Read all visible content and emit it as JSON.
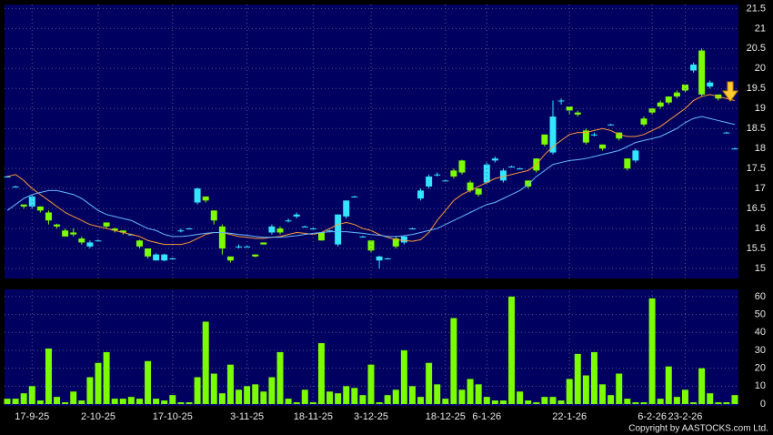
{
  "chart_data": [
    {
      "type": "candlestick",
      "open": [
        17.3,
        17.05,
        16.6,
        16.55,
        16.55,
        16.4,
        16.1,
        15.95,
        15.9,
        15.75,
        15.55,
        15.7,
        16.15,
        16.0,
        15.95,
        15.85,
        15.7,
        15.5,
        15.2,
        15.2,
        15.25,
        15.95,
        16.0,
        16.65,
        16.8,
        16.45,
        16.05,
        15.3,
        15.55,
        15.55,
        15.35,
        15.65,
        15.9,
        16.0,
        16.2,
        16.3,
        16.05,
        16.0,
        15.9,
        15.95,
        15.6,
        16.3,
        16.8,
        15.8,
        15.7,
        15.2,
        15.25,
        15.75,
        15.65,
        16.0,
        16.75,
        17.05,
        17.35,
        17.2,
        17.45,
        17.7,
        17.15,
        17.0,
        17.15,
        17.7,
        17.2,
        17.55,
        17.5,
        17.2,
        17.75,
        18.35,
        17.9,
        19.2,
        19.05,
        18.9,
        18.45,
        18.35,
        18.1,
        18.6,
        18.4,
        17.75,
        17.7,
        18.75,
        19.0,
        19.15,
        19.3,
        19.4,
        19.6,
        19.95,
        20.45,
        19.55,
        19.35,
        18.4,
        18.0
      ],
      "high": [
        17.32,
        17.07,
        16.6,
        16.85,
        16.55,
        16.45,
        16.12,
        16.0,
        16.0,
        15.8,
        15.7,
        15.72,
        16.15,
        16.02,
        15.95,
        15.87,
        15.72,
        15.5,
        15.38,
        15.37,
        15.27,
        16.0,
        16.02,
        17.02,
        16.8,
        16.45,
        16.1,
        15.3,
        15.6,
        15.57,
        15.35,
        15.65,
        16.1,
        16.05,
        16.25,
        16.4,
        16.07,
        16.02,
        15.9,
        15.97,
        16.35,
        16.7,
        16.82,
        15.82,
        15.7,
        15.32,
        15.27,
        15.8,
        15.82,
        16.02,
        17.0,
        17.35,
        17.4,
        17.22,
        17.5,
        17.72,
        17.2,
        17.0,
        17.65,
        17.8,
        17.5,
        17.57,
        17.52,
        17.2,
        17.75,
        18.35,
        19.2,
        19.25,
        19.05,
        18.95,
        18.5,
        18.4,
        18.1,
        18.62,
        18.4,
        17.75,
        18.0,
        18.8,
        19.0,
        19.2,
        19.3,
        19.45,
        19.6,
        20.15,
        20.5,
        19.7,
        19.35,
        18.42,
        18.02
      ],
      "low": [
        17.28,
        17.03,
        16.5,
        16.5,
        16.4,
        16.1,
        16.0,
        15.8,
        15.8,
        15.6,
        15.5,
        15.68,
        16.0,
        15.9,
        15.85,
        15.83,
        15.5,
        15.25,
        15.2,
        15.18,
        15.23,
        15.9,
        15.98,
        16.6,
        16.65,
        16.1,
        15.35,
        15.15,
        15.5,
        15.53,
        15.28,
        15.6,
        15.85,
        15.85,
        16.15,
        16.25,
        16.03,
        15.98,
        15.7,
        15.9,
        15.55,
        16.25,
        16.78,
        15.78,
        15.4,
        15.0,
        15.23,
        15.5,
        15.6,
        15.98,
        16.7,
        17.0,
        17.3,
        17.18,
        17.25,
        17.35,
        16.9,
        16.8,
        17.1,
        17.65,
        17.15,
        17.53,
        17.48,
        17.0,
        17.4,
        18.05,
        17.85,
        19.1,
        18.85,
        18.8,
        18.1,
        18.3,
        17.95,
        18.58,
        18.2,
        17.45,
        17.65,
        18.55,
        18.85,
        19.0,
        19.1,
        19.25,
        19.4,
        19.9,
        19.3,
        19.5,
        19.2,
        18.38,
        17.98
      ],
      "close": [
        17.3,
        17.05,
        16.55,
        16.8,
        16.45,
        16.2,
        16.05,
        15.8,
        15.85,
        15.65,
        15.65,
        15.7,
        16.05,
        15.95,
        15.9,
        15.85,
        15.55,
        15.3,
        15.35,
        15.35,
        15.25,
        15.95,
        16.0,
        17.0,
        16.7,
        16.2,
        15.5,
        15.2,
        15.55,
        15.55,
        15.3,
        15.6,
        16.05,
        15.9,
        16.2,
        16.35,
        16.05,
        16.0,
        15.7,
        15.95,
        16.35,
        16.7,
        16.8,
        15.8,
        15.45,
        15.3,
        15.25,
        15.55,
        15.8,
        16.0,
        16.95,
        17.3,
        17.35,
        17.2,
        17.3,
        17.4,
        16.95,
        16.85,
        17.6,
        17.75,
        17.45,
        17.55,
        17.5,
        17.05,
        17.45,
        18.1,
        18.8,
        19.2,
        18.95,
        18.85,
        18.15,
        18.35,
        18.0,
        18.6,
        18.25,
        17.5,
        17.95,
        18.6,
        18.9,
        19.05,
        19.15,
        19.3,
        19.45,
        20.1,
        19.35,
        19.65,
        19.25,
        18.4,
        18.0
      ],
      "up_color": "#33e5ff",
      "down_color": "#7cfc00",
      "series": [
        {
          "color": "#ff9933",
          "values": [
            17.3,
            17.35,
            17.2,
            17.0,
            16.85,
            16.7,
            16.55,
            16.4,
            16.3,
            16.2,
            16.1,
            16.05,
            16.0,
            15.95,
            15.9,
            15.85,
            15.8,
            15.7,
            15.65,
            15.6,
            15.6,
            15.6,
            15.65,
            15.75,
            15.85,
            15.9,
            15.9,
            15.85,
            15.8,
            15.78,
            15.75,
            15.75,
            15.78,
            15.8,
            15.85,
            15.9,
            15.88,
            15.85,
            15.9,
            16.0,
            16.1,
            16.15,
            16.1,
            16.0,
            15.95,
            15.85,
            15.78,
            15.72,
            15.7,
            15.68,
            15.72,
            15.9,
            16.2,
            16.45,
            16.7,
            16.85,
            16.95,
            17.05,
            17.15,
            17.25,
            17.3,
            17.35,
            17.4,
            17.45,
            17.6,
            17.85,
            18.05,
            18.2,
            18.35,
            18.4,
            18.4,
            18.45,
            18.5,
            18.45,
            18.35,
            18.3,
            18.3,
            18.35,
            18.45,
            18.55,
            18.7,
            18.85,
            19.0,
            19.2,
            19.3,
            19.35,
            19.3,
            19.25,
            19.2
          ]
        },
        {
          "color": "#66b8ff",
          "values": [
            16.45,
            16.6,
            16.75,
            16.85,
            16.9,
            16.95,
            16.95,
            16.9,
            16.85,
            16.75,
            16.6,
            16.45,
            16.35,
            16.3,
            16.25,
            16.2,
            16.1,
            16.0,
            15.95,
            15.85,
            15.8,
            15.8,
            15.82,
            15.85,
            15.88,
            15.9,
            15.9,
            15.88,
            15.85,
            15.83,
            15.8,
            15.78,
            15.78,
            15.78,
            15.8,
            15.82,
            15.85,
            15.88,
            15.9,
            15.92,
            15.92,
            15.92,
            15.9,
            15.88,
            15.85,
            15.83,
            15.8,
            15.8,
            15.82,
            15.85,
            15.9,
            15.95,
            16.0,
            16.1,
            16.2,
            16.3,
            16.4,
            16.5,
            16.6,
            16.65,
            16.75,
            16.85,
            16.95,
            17.1,
            17.3,
            17.45,
            17.6,
            17.65,
            17.7,
            17.72,
            17.75,
            17.8,
            17.85,
            17.9,
            17.95,
            18.05,
            18.15,
            18.2,
            18.25,
            18.3,
            18.4,
            18.5,
            18.65,
            18.75,
            18.8,
            18.75,
            18.7,
            18.65,
            18.6
          ]
        }
      ],
      "ylim": [
        14.75,
        21.6
      ],
      "yticks": [
        15,
        15.5,
        16,
        16.5,
        17,
        17.5,
        18,
        18.5,
        19,
        19.5,
        20,
        20.5,
        21,
        21.5
      ],
      "grid": true
    },
    {
      "type": "bar",
      "categories": [
        null,
        null,
        null,
        "17-9-25",
        null,
        null,
        null,
        null,
        null,
        null,
        null,
        "2-10-25",
        null,
        null,
        null,
        null,
        null,
        null,
        null,
        null,
        "17-10-25",
        null,
        null,
        null,
        null,
        null,
        null,
        null,
        null,
        "3-11-25",
        null,
        null,
        null,
        null,
        null,
        null,
        null,
        "18-11-25",
        null,
        null,
        null,
        null,
        null,
        null,
        "3-12-25",
        null,
        null,
        null,
        null,
        null,
        null,
        null,
        null,
        "18-12-25",
        null,
        null,
        null,
        null,
        "6-1-26",
        null,
        null,
        null,
        null,
        null,
        null,
        null,
        null,
        null,
        "22-1-26",
        null,
        null,
        null,
        null,
        null,
        null,
        null,
        null,
        null,
        "6-2-26",
        null,
        null,
        null,
        "23-2-26",
        null,
        null,
        null,
        null,
        null,
        null
      ],
      "values": [
        3,
        3,
        6,
        10,
        2,
        31,
        4,
        1,
        7,
        2,
        15,
        23,
        29,
        3,
        3,
        4,
        3,
        24,
        3,
        2,
        5,
        1,
        1,
        15,
        46,
        17,
        6,
        22,
        8,
        10,
        11,
        7,
        15,
        29,
        3,
        1,
        8,
        1,
        34,
        7,
        6,
        10,
        9,
        5,
        22,
        1,
        5,
        8,
        30,
        10,
        4,
        23,
        11,
        3,
        48,
        8,
        14,
        11,
        4,
        2,
        2,
        60,
        7,
        2,
        1,
        4,
        4,
        2,
        14,
        28,
        16,
        29,
        11,
        5,
        17,
        3,
        1,
        1,
        59,
        3,
        21,
        4,
        8,
        1,
        20,
        6,
        1,
        1,
        5
      ],
      "color": "#7cfc00",
      "ylim": [
        0,
        63
      ],
      "yticks": [
        0,
        10,
        20,
        30,
        40,
        50,
        60
      ],
      "grid": true
    }
  ],
  "copyright": "Copyright by AASTOCKS.com Ltd."
}
